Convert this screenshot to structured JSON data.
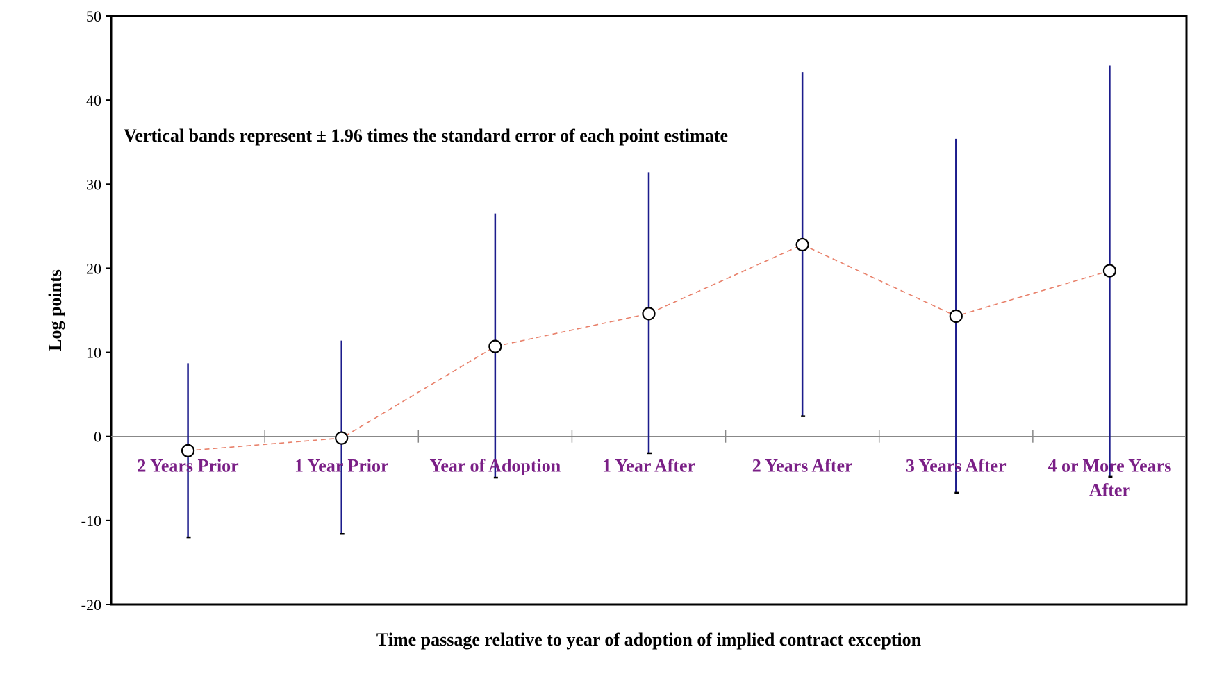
{
  "chart_data": {
    "type": "line",
    "title": "",
    "xlabel": "Time passage relative to year of adoption of implied contract exception",
    "ylabel": "Log points",
    "annotation": "Vertical bands represent ± 1.96 times the standard error of each point estimate",
    "categories": [
      [
        "2 Years Prior"
      ],
      [
        "1 Year Prior"
      ],
      [
        "Year of Adoption"
      ],
      [
        "1 Year After"
      ],
      [
        "2 Years After"
      ],
      [
        "3 Years After"
      ],
      [
        "4 or More Years",
        "After"
      ]
    ],
    "values": [
      -1.7,
      -0.2,
      10.7,
      14.6,
      22.8,
      14.3,
      19.7
    ],
    "error_bars": {
      "upper": [
        8.7,
        11.4,
        26.5,
        31.4,
        43.3,
        35.4,
        44.1
      ],
      "lower": [
        -12.0,
        -11.6,
        -4.9,
        -2.0,
        2.4,
        -6.7,
        -4.8
      ]
    },
    "ylim": [
      -20,
      50
    ],
    "yticks": [
      -20,
      -10,
      0,
      10,
      20,
      30,
      40,
      50
    ],
    "grid": false,
    "legend": "none",
    "colors": {
      "line": "#e8806a",
      "error_bar": "#1c1c8c",
      "category_label": "#7a1f86",
      "marker_fill": "#ffffff",
      "marker_stroke": "#000000",
      "zero_line": "#888888"
    }
  }
}
